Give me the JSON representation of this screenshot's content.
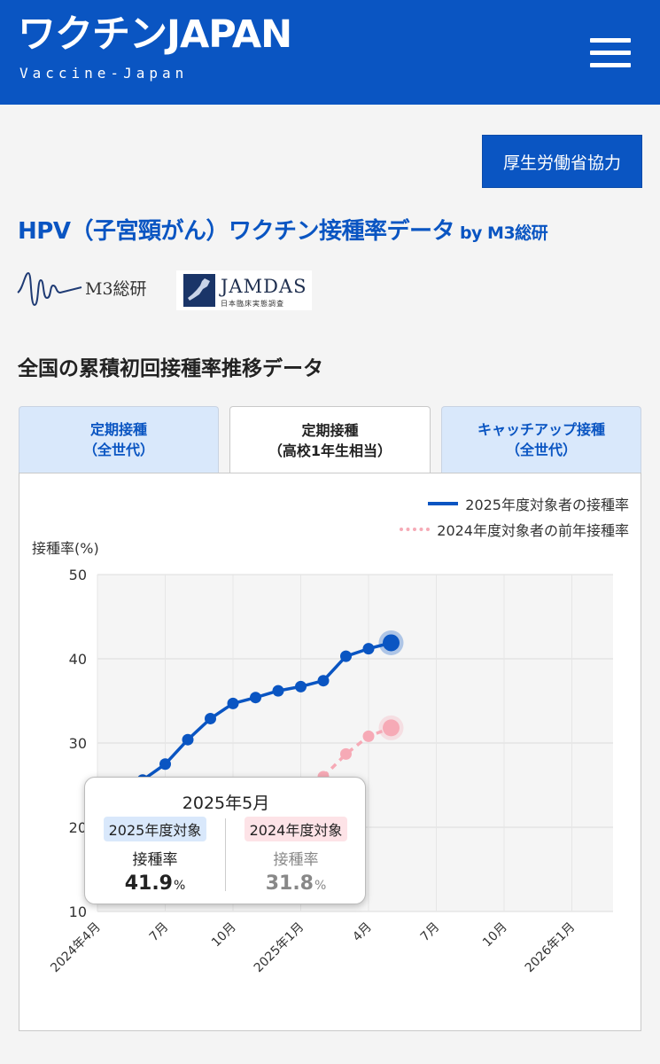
{
  "header": {
    "brand_title": "ワクチンJAPAN",
    "brand_subtitle": "Vaccine-Japan",
    "brand_color": "#0a55c2",
    "menu_icon": "hamburger-menu-icon"
  },
  "coop_button_label": "厚生労働省協力",
  "page_title": "HPV（子宮頸がん）ワクチン接種率データ",
  "page_title_by": "by M3総研",
  "logos": {
    "m3": "M3総研",
    "jamdas_name": "JAMDAS",
    "jamdas_sub": "日本臨床実態調査"
  },
  "section_title": "全国の累積初回接種率推移データ",
  "tabs": [
    {
      "line1": "定期接種",
      "line2": "（全世代）",
      "active": false
    },
    {
      "line1": "定期接種",
      "line2": "（高校1年生相当）",
      "active": true
    },
    {
      "line1": "キャッチアップ接種",
      "line2": "（全世代）",
      "active": false
    }
  ],
  "chart_data": {
    "type": "line",
    "ylabel": "接種率(%)",
    "ylim": [
      10,
      50
    ],
    "yticks": [
      10,
      20,
      30,
      40,
      50
    ],
    "xlim": [
      "2024-04",
      "2026-03"
    ],
    "xticks": [
      {
        "month": "2024-04",
        "label": "2024年4月"
      },
      {
        "month": "2024-07",
        "label": "7月"
      },
      {
        "month": "2024-10",
        "label": "10月"
      },
      {
        "month": "2025-01",
        "label": "2025年1月"
      },
      {
        "month": "2025-04",
        "label": "4月"
      },
      {
        "month": "2025-07",
        "label": "7月"
      },
      {
        "month": "2025-10",
        "label": "10月"
      },
      {
        "month": "2026-01",
        "label": "2026年1月"
      }
    ],
    "grid": true,
    "legend_position": "top-right",
    "series": [
      {
        "name": "2025年度対象者の接種率",
        "color": "#0a55c2",
        "style": "solid",
        "points": [
          {
            "month": "2024-06",
            "value": 25.6
          },
          {
            "month": "2024-07",
            "value": 27.5
          },
          {
            "month": "2024-08",
            "value": 30.4
          },
          {
            "month": "2024-09",
            "value": 32.9
          },
          {
            "month": "2024-10",
            "value": 34.7
          },
          {
            "month": "2024-11",
            "value": 35.4
          },
          {
            "month": "2024-12",
            "value": 36.2
          },
          {
            "month": "2025-01",
            "value": 36.7
          },
          {
            "month": "2025-02",
            "value": 37.4
          },
          {
            "month": "2025-03",
            "value": 40.3
          },
          {
            "month": "2025-04",
            "value": 41.2
          },
          {
            "month": "2025-05",
            "value": 41.9
          }
        ]
      },
      {
        "name": "2024年度対象者の前年接種率",
        "color": "#f6aab6",
        "style": "dashed",
        "points": [
          {
            "month": "2025-02",
            "value": 26.0
          },
          {
            "month": "2025-03",
            "value": 28.7
          },
          {
            "month": "2025-04",
            "value": 30.8
          },
          {
            "month": "2025-05",
            "value": 31.8
          }
        ]
      }
    ]
  },
  "tooltip": {
    "month": "2025年5月",
    "series_a": {
      "badge": "2025年度対象",
      "label": "接種率",
      "value": "41.9",
      "unit": "%"
    },
    "series_b": {
      "badge": "2024年度対象",
      "label": "接種率",
      "value": "31.8",
      "unit": "%"
    }
  }
}
